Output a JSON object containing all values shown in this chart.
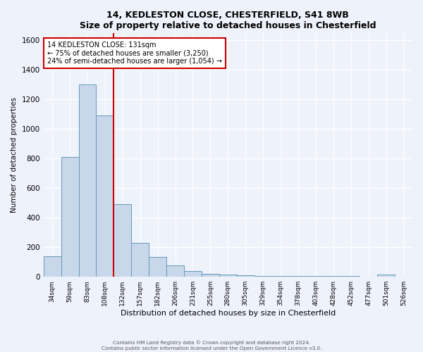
{
  "title": "14, KEDLESTON CLOSE, CHESTERFIELD, S41 8WB",
  "subtitle": "Size of property relative to detached houses in Chesterfield",
  "xlabel": "Distribution of detached houses by size in Chesterfield",
  "ylabel": "Number of detached properties",
  "categories": [
    "34sqm",
    "59sqm",
    "83sqm",
    "108sqm",
    "132sqm",
    "157sqm",
    "182sqm",
    "206sqm",
    "231sqm",
    "255sqm",
    "280sqm",
    "305sqm",
    "329sqm",
    "354sqm",
    "378sqm",
    "403sqm",
    "428sqm",
    "452sqm",
    "477sqm",
    "501sqm",
    "526sqm"
  ],
  "values": [
    140,
    810,
    1300,
    1090,
    490,
    230,
    135,
    75,
    40,
    20,
    15,
    10,
    8,
    5,
    5,
    5,
    4,
    4,
    3,
    15,
    3
  ],
  "bar_color": "#c8d8ea",
  "bar_edge_color": "#6699bb",
  "ylim": [
    0,
    1650
  ],
  "yticks": [
    0,
    200,
    400,
    600,
    800,
    1000,
    1200,
    1400,
    1600
  ],
  "property_line_label": "14 KEDLESTON CLOSE: 131sqm",
  "annotation_line1": "← 75% of detached houses are smaller (3,250)",
  "annotation_line2": "24% of semi-detached houses are larger (1,054) →",
  "footer_line1": "Contains HM Land Registry data © Crown copyright and database right 2024.",
  "footer_line2": "Contains public sector information licensed under the Open Government Licence v3.0.",
  "bg_color": "#eef2fb",
  "plot_bg_color": "#eef2fb",
  "grid_color": "#ffffff",
  "annotation_box_color": "#ffffff",
  "annotation_box_edge": "#cc0000",
  "vline_color": "#cc0000",
  "vline_x_index": 3.5
}
